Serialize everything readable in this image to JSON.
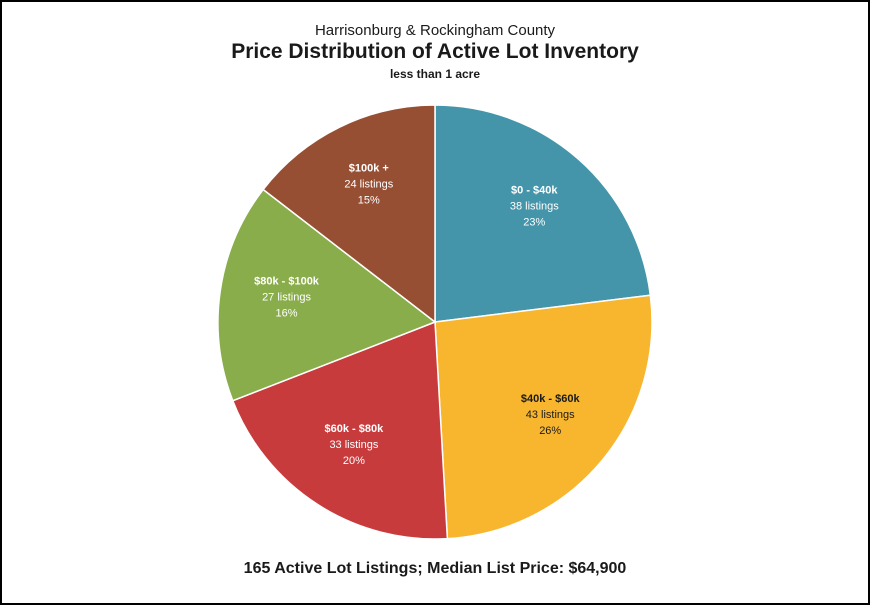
{
  "header": {
    "supertitle": "Harrisonburg & Rockingham County",
    "title": "Price Distribution of Active Lot Inventory",
    "subtitle": "less than 1 acre"
  },
  "footer": {
    "text": "165 Active Lot Listings;  Median List Price: $64,900"
  },
  "chart_data": {
    "type": "pie",
    "title": "Price Distribution of Active Lot Inventory",
    "subtitle": "less than 1 acre",
    "start": "12 o'clock",
    "direction": "clockwise",
    "slices": [
      {
        "label": "$0 - $40k",
        "listings_text": "38 listings",
        "percent_text": "23%",
        "value": 38,
        "color": "#4495aa",
        "label_color": "#ffffff"
      },
      {
        "label": "$40k - $60k",
        "listings_text": "43 listings",
        "percent_text": "26%",
        "value": 43,
        "color": "#f8b62f",
        "label_color": "#1a1a1a"
      },
      {
        "label": "$60k - $80k",
        "listings_text": "33 listings",
        "percent_text": "20%",
        "value": 33,
        "color": "#c83b3d",
        "label_color": "#ffffff"
      },
      {
        "label": "$80k - $100k",
        "listings_text": "27 listings",
        "percent_text": "16%",
        "value": 27,
        "color": "#8aad4b",
        "label_color": "#ffffff"
      },
      {
        "label": "$100k +",
        "listings_text": "24 listings",
        "percent_text": "15%",
        "value": 24,
        "color": "#974f33",
        "label_color": "#ffffff"
      }
    ]
  }
}
